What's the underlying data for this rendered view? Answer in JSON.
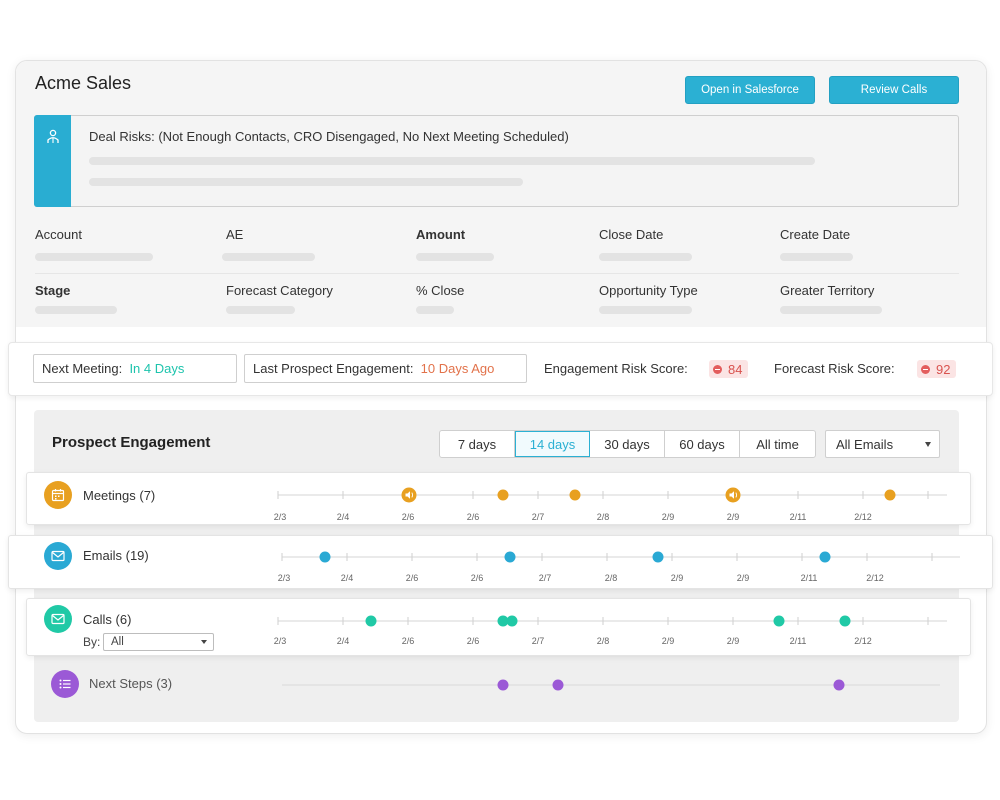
{
  "header": {
    "title": "Acme Sales",
    "open_salesforce_label": "Open in Salesforce",
    "review_calls_label": "Review Calls"
  },
  "deal_risks": {
    "text": "Deal Risks: (Not Enough Contacts, CRO Disengaged, No Next Meeting Scheduled)",
    "icon": "user-icon",
    "accent_color": "#29add2"
  },
  "fields": {
    "row1": [
      "Account",
      "AE",
      "Amount",
      "Close Date",
      "Create Date"
    ],
    "row2": [
      "Stage",
      "Forecast Category",
      "% Close",
      "Opportunity Type",
      "Greater Territory"
    ]
  },
  "metrics": {
    "next_meeting_label": "Next Meeting:",
    "next_meeting_value": "In 4 Days",
    "last_engagement_label": "Last Prospect Engagement:",
    "last_engagement_value": "10 Days Ago",
    "engagement_risk_label": "Engagement Risk Score:",
    "engagement_risk_value": "84",
    "forecast_risk_label": "Forecast Risk Score:",
    "forecast_risk_value": "92"
  },
  "engagement": {
    "title": "Prospect Engagement",
    "ranges": [
      "7 days",
      "14 days",
      "30 days",
      "60 days",
      "All time"
    ],
    "active_range": "14 days",
    "filter_value": "All Emails",
    "rows": [
      {
        "label": "Meetings (7)",
        "icon": "calendar-icon",
        "color": "#e8a020",
        "ticks": [
          "2/3",
          "2/4",
          "2/6",
          "2/6",
          "2/7",
          "2/8",
          "2/9",
          "2/9",
          "2/11",
          "2/12"
        ]
      },
      {
        "label": "Emails (19)",
        "icon": "mail-icon",
        "color": "#2aa9d4",
        "ticks": [
          "2/3",
          "2/4",
          "2/6",
          "2/6",
          "2/7",
          "2/8",
          "2/9",
          "2/9",
          "2/11",
          "2/12"
        ]
      },
      {
        "label": "Calls (6)",
        "icon": "mail-icon",
        "color": "#20c9a6",
        "ticks": [
          "2/3",
          "2/4",
          "2/6",
          "2/6",
          "2/7",
          "2/8",
          "2/9",
          "2/9",
          "2/11",
          "2/12"
        ],
        "by_label": "By:",
        "by_value": "All"
      },
      {
        "label": "Next Steps (3)",
        "icon": "list-icon",
        "color": "#9b59d6",
        "ticks": []
      }
    ]
  }
}
